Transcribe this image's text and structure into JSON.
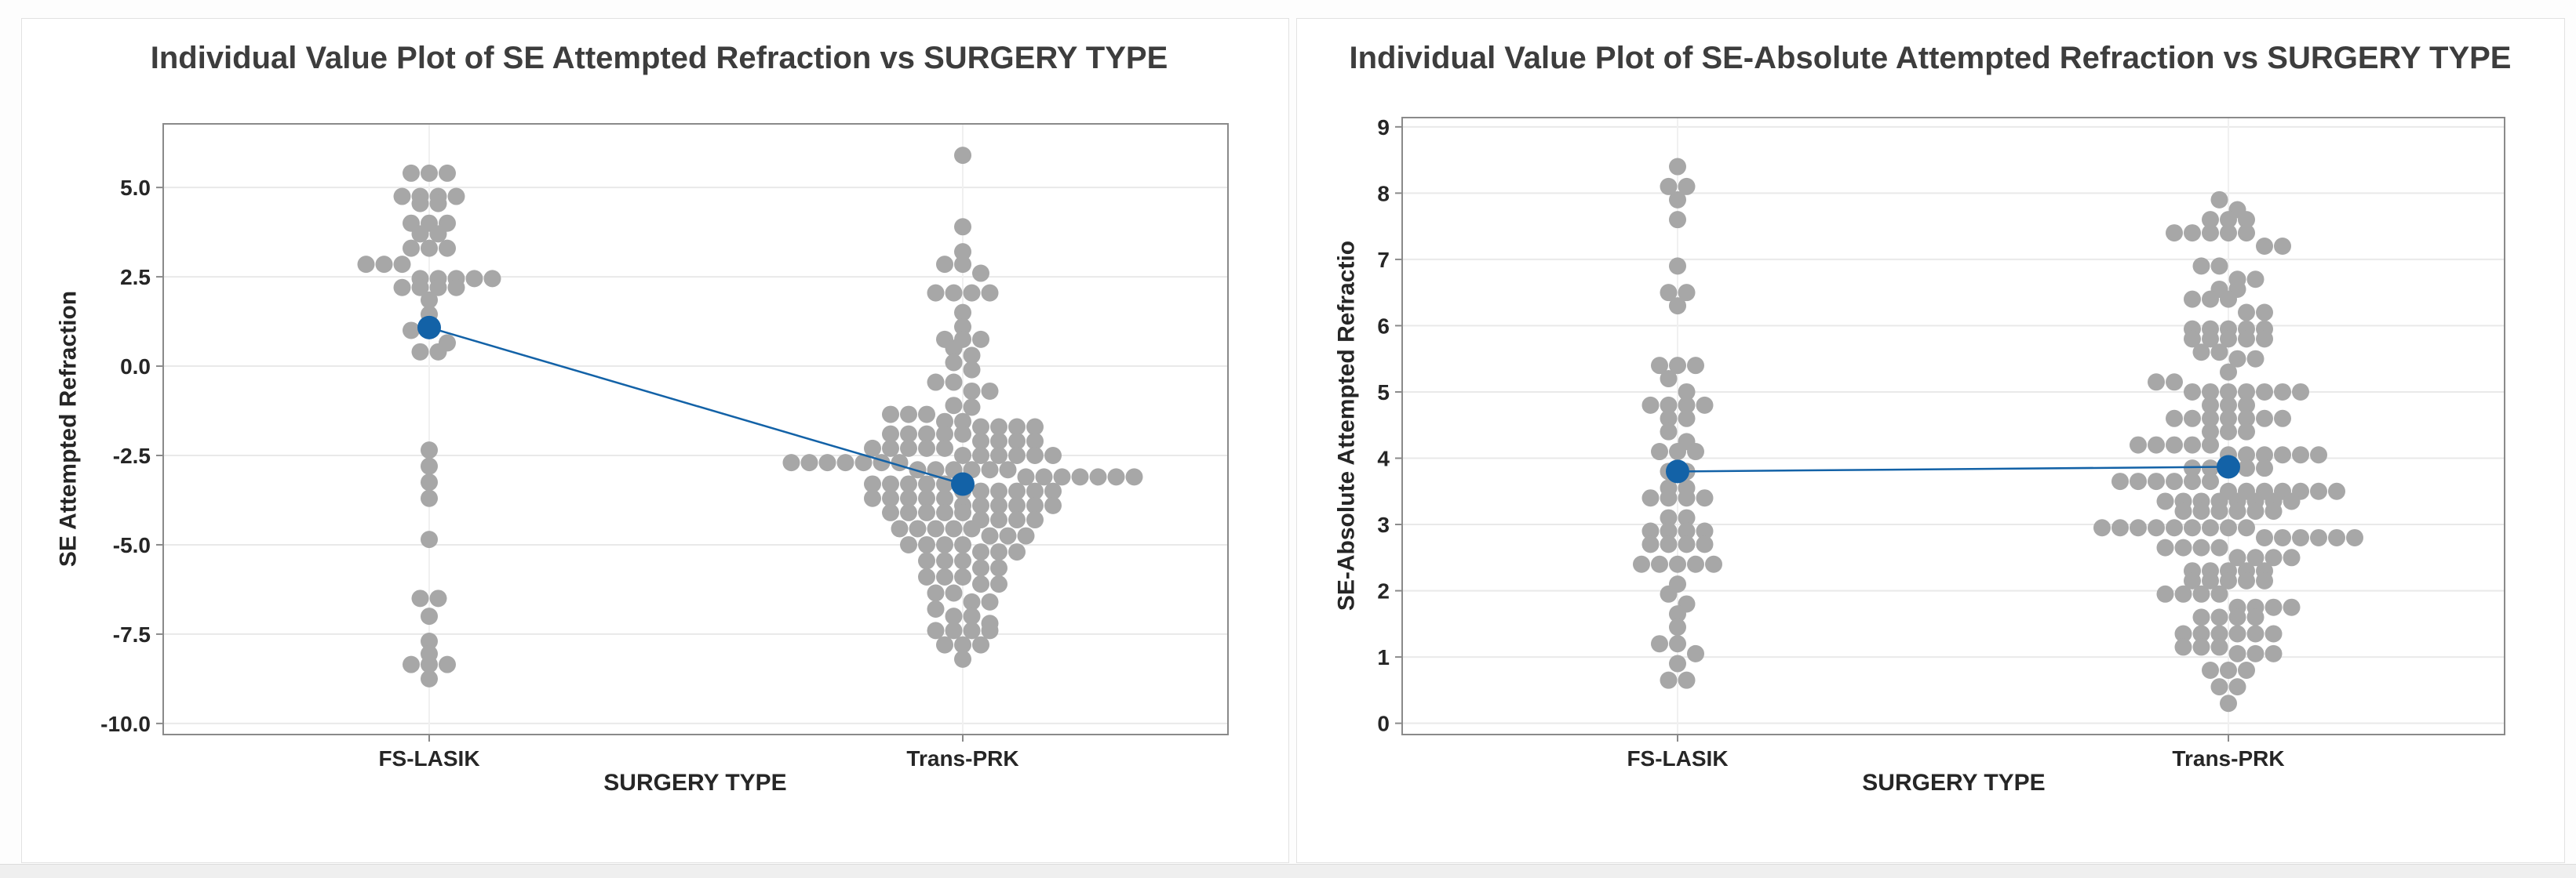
{
  "colors": {
    "point": "#a7a7a7",
    "mean": "#1362a7",
    "gridline": "#e9e9e9",
    "category_guide": "#f0f0f0",
    "frame": "#8a8a8a",
    "tick_text": "#262626",
    "title_text": "#3d3d3d"
  },
  "chart_data": [
    {
      "type": "scatter",
      "subtype": "individual-value-plot",
      "title": "Individual Value Plot of SE Attempted Refraction vs SURGERY TYPE",
      "xlabel": "SURGERY TYPE",
      "ylabel": "SE Attempted Refraction",
      "categories": [
        "FS-LASIK",
        "Trans-PRK"
      ],
      "ytick_values": [
        5,
        2.5,
        0,
        -2.5,
        -5,
        -7.5,
        -10
      ],
      "ytick_labels": [
        "5.0",
        "2.5",
        "0.0",
        "-2.5",
        "-5.0",
        "-7.5",
        "-10.0"
      ],
      "ylim": [
        -10.31,
        6.78
      ],
      "grid": "horizontal-gridlines",
      "legend": "none",
      "means": [
        1.08,
        -3.3
      ],
      "series": [
        {
          "name": "FS-LASIK",
          "values": [
            5.4,
            5.4,
            5.4,
            4.75,
            4.75,
            4.75,
            4.75,
            4.55,
            4.55,
            4.0,
            4.0,
            4.0,
            3.7,
            3.7,
            3.3,
            3.3,
            3.3,
            2.85,
            2.85,
            2.85,
            2.45,
            2.45,
            2.45,
            2.45,
            2.45,
            2.2,
            2.2,
            2.2,
            2.2,
            1.85,
            1.45,
            1.0,
            1.0,
            0.65,
            0.4,
            0.4,
            -2.35,
            -2.8,
            -3.25,
            -3.7,
            -4.85,
            -6.5,
            -6.5,
            -7.0,
            -7.7,
            -8.05,
            -8.35,
            -8.35,
            -8.35,
            -8.75
          ]
        },
        {
          "name": "Trans-PRK",
          "values": [
            5.9,
            3.9,
            3.2,
            2.85,
            2.85,
            2.6,
            2.05,
            2.05,
            2.05,
            2.05,
            1.5,
            1.1,
            0.75,
            0.75,
            0.75,
            0.5,
            0.3,
            0.1,
            -0.1,
            -0.45,
            -0.45,
            -0.7,
            -0.7,
            -1.1,
            -1.15,
            -1.35,
            -1.35,
            -1.35,
            -1.55,
            -1.55,
            -1.7,
            -1.7,
            -1.7,
            -1.7,
            -1.9,
            -1.9,
            -1.9,
            -1.9,
            -1.9,
            -2.1,
            -2.1,
            -2.1,
            -2.1,
            -2.3,
            -2.3,
            -2.3,
            -2.3,
            -2.3,
            -2.5,
            -2.5,
            -2.5,
            -2.5,
            -2.5,
            -2.5,
            -2.7,
            -2.7,
            -2.7,
            -2.7,
            -2.7,
            -2.7,
            -2.7,
            -2.9,
            -2.9,
            -2.9,
            -2.9,
            -2.9,
            -2.9,
            -3.1,
            -3.1,
            -3.1,
            -3.1,
            -3.1,
            -3.1,
            -3.1,
            -3.3,
            -3.3,
            -3.3,
            -3.3,
            -3.3,
            -3.5,
            -3.5,
            -3.5,
            -3.5,
            -3.5,
            -3.5,
            -3.7,
            -3.7,
            -3.7,
            -3.7,
            -3.7,
            -3.9,
            -3.9,
            -3.9,
            -3.9,
            -3.9,
            -3.9,
            -4.1,
            -4.1,
            -4.1,
            -4.1,
            -4.1,
            -4.3,
            -4.3,
            -4.3,
            -4.3,
            -4.55,
            -4.55,
            -4.55,
            -4.55,
            -4.55,
            -4.75,
            -4.75,
            -4.75,
            -5.0,
            -5.0,
            -5.0,
            -5.0,
            -5.2,
            -5.2,
            -5.2,
            -5.45,
            -5.45,
            -5.45,
            -5.65,
            -5.65,
            -5.9,
            -5.9,
            -5.9,
            -6.1,
            -6.1,
            -6.35,
            -6.35,
            -6.6,
            -6.6,
            -6.8,
            -7.0,
            -7.0,
            -7.2,
            -7.4,
            -7.4,
            -7.4,
            -7.4,
            -7.8,
            -7.8,
            -7.8,
            -8.2
          ]
        }
      ]
    },
    {
      "type": "scatter",
      "subtype": "individual-value-plot",
      "title": "Individual Value Plot of SE-Absolute Attempted Refraction vs SURGERY TYPE",
      "xlabel": "SURGERY TYPE",
      "ylabel": "SE-Absolute Attempted Refractio",
      "categories": [
        "FS-LASIK",
        "Trans-PRK"
      ],
      "ytick_values": [
        9,
        8,
        7,
        6,
        5,
        4,
        3,
        2,
        1,
        0
      ],
      "ytick_labels": [
        "9",
        "8",
        "7",
        "6",
        "5",
        "4",
        "3",
        "2",
        "1",
        "0"
      ],
      "ylim": [
        -0.17,
        9.14
      ],
      "grid": "horizontal-gridlines",
      "legend": "none",
      "means": [
        3.8,
        3.87
      ],
      "series": [
        {
          "name": "FS-LASIK",
          "values": [
            8.4,
            8.1,
            8.1,
            7.9,
            7.6,
            6.9,
            6.5,
            6.5,
            6.3,
            5.4,
            5.4,
            5.4,
            5.2,
            5.0,
            4.8,
            4.8,
            4.8,
            4.8,
            4.6,
            4.6,
            4.4,
            4.25,
            4.1,
            4.1,
            4.1,
            3.8,
            3.8,
            3.55,
            3.55,
            3.4,
            3.4,
            3.4,
            3.4,
            3.1,
            3.1,
            2.9,
            2.9,
            2.9,
            2.9,
            2.7,
            2.7,
            2.7,
            2.7,
            2.4,
            2.4,
            2.4,
            2.4,
            2.4,
            2.1,
            1.95,
            1.8,
            1.65,
            1.45,
            1.2,
            1.2,
            1.05,
            0.9,
            0.65,
            0.65
          ]
        },
        {
          "name": "Trans-PRK",
          "values": [
            7.9,
            7.75,
            7.6,
            7.6,
            7.6,
            7.4,
            7.4,
            7.4,
            7.4,
            7.4,
            7.2,
            7.2,
            6.9,
            6.9,
            6.7,
            6.7,
            6.55,
            6.55,
            6.4,
            6.4,
            6.4,
            6.2,
            6.2,
            5.95,
            5.95,
            5.95,
            5.95,
            5.95,
            5.8,
            5.8,
            5.8,
            5.8,
            5.8,
            5.6,
            5.6,
            5.5,
            5.5,
            5.3,
            5.15,
            5.15,
            5.0,
            5.0,
            5.0,
            5.0,
            5.0,
            5.0,
            5.0,
            4.8,
            4.8,
            4.8,
            4.6,
            4.6,
            4.6,
            4.6,
            4.6,
            4.6,
            4.6,
            4.4,
            4.4,
            4.4,
            4.2,
            4.2,
            4.2,
            4.2,
            4.2,
            4.05,
            4.05,
            4.05,
            4.05,
            4.05,
            4.05,
            3.85,
            3.85,
            3.85,
            3.85,
            3.85,
            3.65,
            3.65,
            3.65,
            3.65,
            3.65,
            3.65,
            3.5,
            3.5,
            3.5,
            3.5,
            3.5,
            3.5,
            3.5,
            3.35,
            3.35,
            3.35,
            3.35,
            3.35,
            3.35,
            3.35,
            3.35,
            3.2,
            3.2,
            3.2,
            3.2,
            3.2,
            3.2,
            2.95,
            2.95,
            2.95,
            2.95,
            2.95,
            2.95,
            2.95,
            2.95,
            2.95,
            2.8,
            2.8,
            2.8,
            2.8,
            2.8,
            2.8,
            2.65,
            2.65,
            2.65,
            2.65,
            2.5,
            2.5,
            2.5,
            2.5,
            2.3,
            2.3,
            2.3,
            2.3,
            2.3,
            2.15,
            2.15,
            2.15,
            2.15,
            2.15,
            1.95,
            1.95,
            1.95,
            1.95,
            1.75,
            1.75,
            1.75,
            1.75,
            1.6,
            1.6,
            1.6,
            1.6,
            1.35,
            1.35,
            1.35,
            1.35,
            1.35,
            1.35,
            1.15,
            1.15,
            1.15,
            1.05,
            1.05,
            1.05,
            0.8,
            0.8,
            0.8,
            0.55,
            0.55,
            0.3
          ]
        }
      ]
    }
  ]
}
